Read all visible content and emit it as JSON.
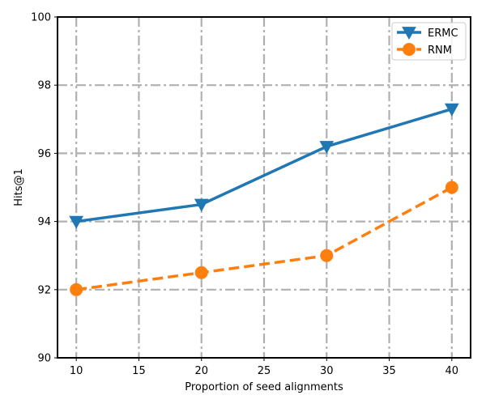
{
  "chart_data": {
    "type": "line",
    "title": "",
    "xlabel": "Proportion of seed alignments",
    "ylabel": "Hits@1",
    "x": [
      10,
      20,
      30,
      40
    ],
    "xlim": [
      8.5,
      41.5
    ],
    "ylim": [
      90,
      100
    ],
    "xticks": [
      10,
      15,
      20,
      25,
      30,
      35,
      40
    ],
    "yticks": [
      90,
      92,
      94,
      96,
      98,
      100
    ],
    "grid": true,
    "legend_position": "top-right",
    "series": [
      {
        "name": "ERMC",
        "values": [
          94.0,
          94.5,
          96.2,
          97.3
        ],
        "color": "#1f77b4",
        "line_style": "solid",
        "marker": "triangle-down"
      },
      {
        "name": "RNM",
        "values": [
          92.0,
          92.5,
          93.0,
          95.0
        ],
        "color": "#ff7f0e",
        "line_style": "dashed",
        "marker": "circle"
      }
    ]
  }
}
